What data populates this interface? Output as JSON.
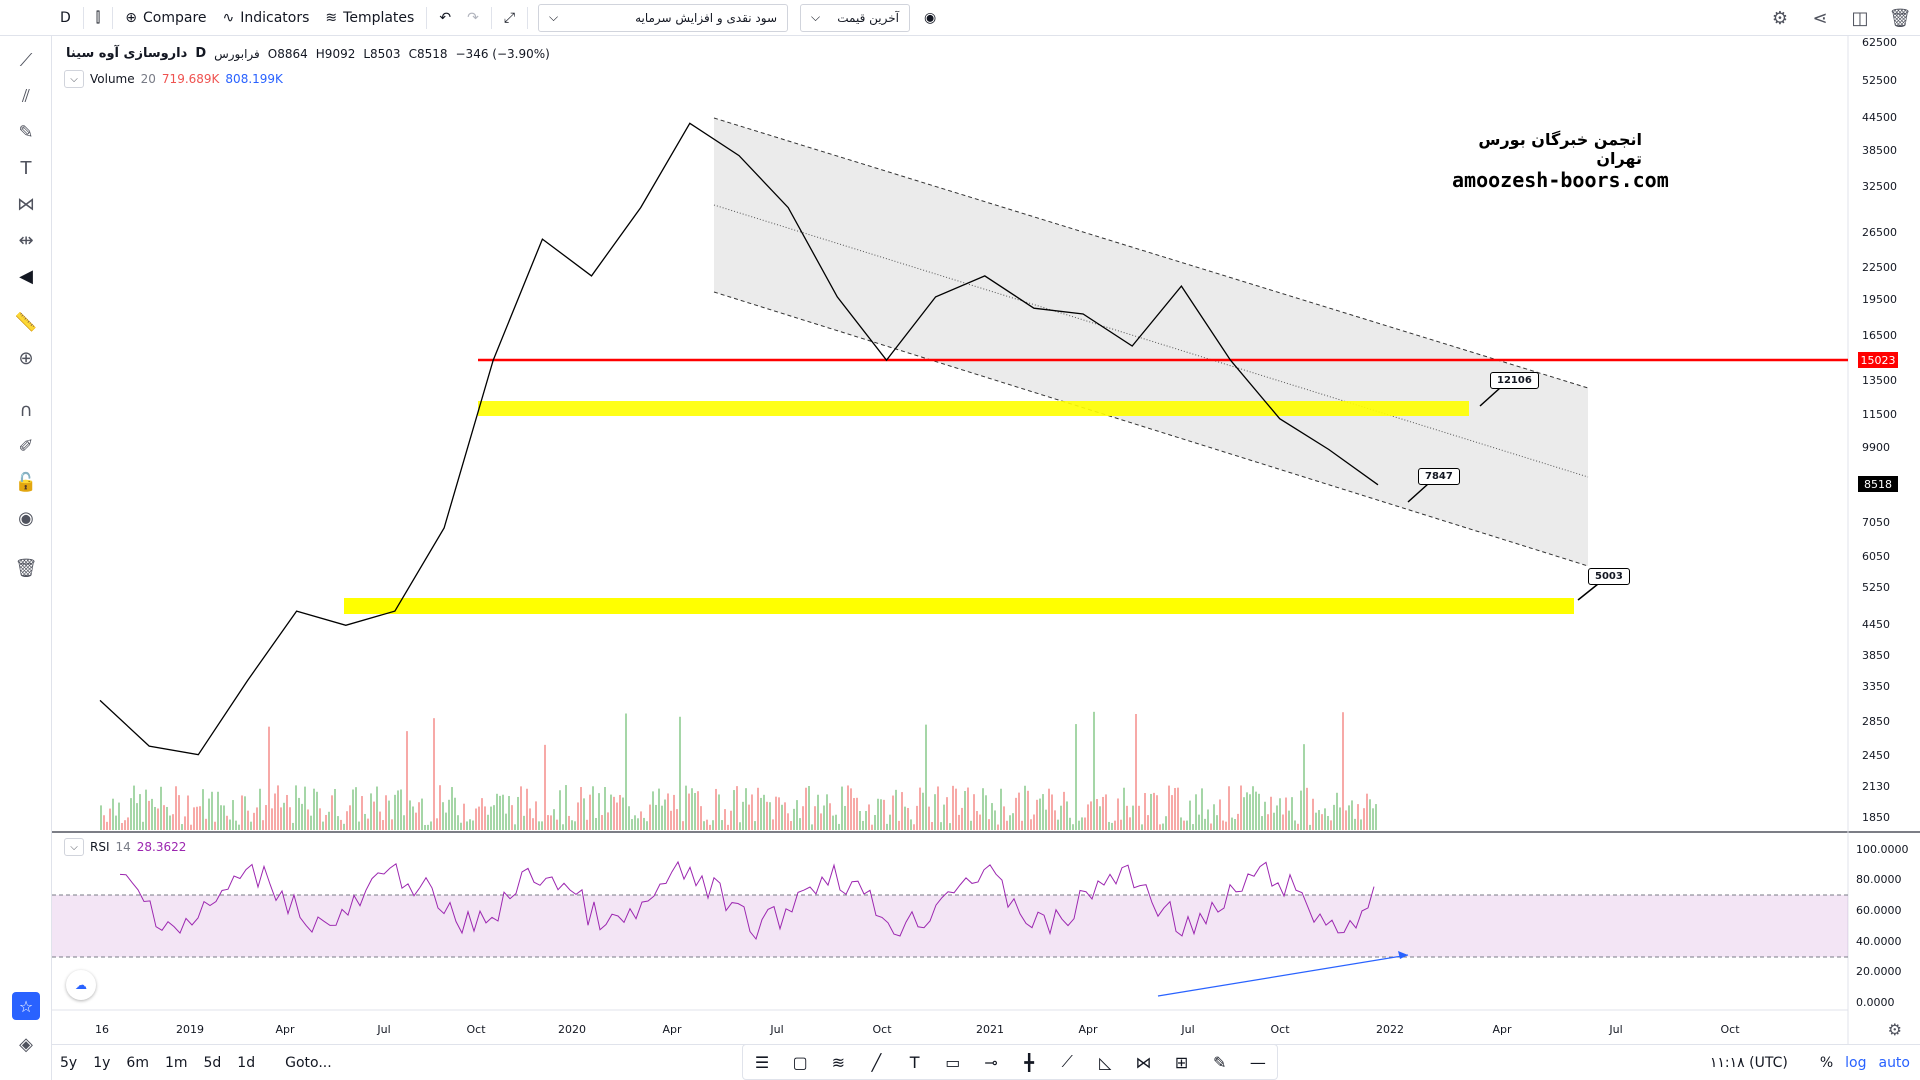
{
  "toolbar": {
    "interval": "D",
    "compare": "Compare",
    "indicators": "Indicators",
    "templates": "Templates",
    "select_a": "سود نقدی و افزایش سرمایه",
    "select_b": "آخرین قیمت"
  },
  "legend": {
    "symbol_name": "داروسازی آوه سینا",
    "interval": "D",
    "exchange": "فرابورس",
    "open": "O8864",
    "high": "H9092",
    "low": "L8503",
    "close": "C8518",
    "change": "−346 (−3.90%)"
  },
  "volume_legend": {
    "label": "Volume",
    "period": "20",
    "value1": "719.689K",
    "value2": "808.199K"
  },
  "rsi_legend": {
    "label": "RSI",
    "period": "14",
    "value": "28.3622"
  },
  "watermark": {
    "line1": "انجمن خبرگان بورس تهران",
    "line2": "amoozesh-boors.com"
  },
  "price_axis": [
    "62500",
    "52500",
    "44500",
    "38500",
    "32500",
    "26500",
    "22500",
    "19500",
    "16500",
    "13500",
    "11500",
    "9900",
    "8518",
    "7050",
    "6050",
    "5250",
    "4450",
    "3850",
    "3350",
    "2850",
    "2450",
    "2130",
    "1850"
  ],
  "price_tags": {
    "current": "8518",
    "red_line": "15023"
  },
  "rsi_axis": [
    "100.0000",
    "80.0000",
    "60.0000",
    "40.0000",
    "20.0000",
    "0.0000"
  ],
  "time_axis": [
    "16",
    "2019",
    "Apr",
    "Jul",
    "Oct",
    "2020",
    "Apr",
    "Jul",
    "Oct",
    "2021",
    "Apr",
    "Jul",
    "Oct",
    "2022",
    "Apr",
    "Jul",
    "Oct"
  ],
  "notes": {
    "n1": "12106",
    "n2": "7847",
    "n3": "5003"
  },
  "bottombar": {
    "ranges": [
      "5y",
      "1y",
      "6m",
      "1m",
      "5d",
      "1d"
    ],
    "goto": "Goto...",
    "time": "۱۱:۱۸ (UTC)",
    "percent": "%",
    "log": "log",
    "auto": "auto"
  },
  "colors": {
    "red_line": "#ff0000",
    "yellow_zone": "#ffff00",
    "rsi": "#9c27b0",
    "blue_trend": "#2962ff"
  },
  "chart_data": {
    "type": "line",
    "series": [
      {
        "values": [
          3200,
          2600,
          2500,
          3500,
          4800,
          4500,
          4800,
          7000,
          15000,
          26000,
          22000,
          30000,
          44000,
          38000,
          30000,
          20000,
          15000,
          20000,
          22000,
          19000,
          18500,
          16000,
          21000,
          15000,
          11500,
          10000,
          8518
        ]
      }
    ],
    "yscale": "log"
  }
}
